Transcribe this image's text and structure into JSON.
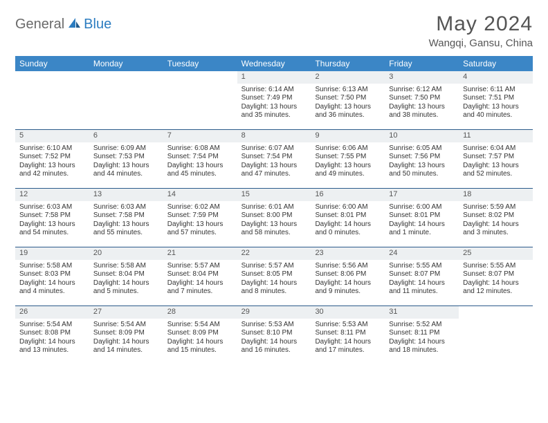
{
  "logo": {
    "text1": "General",
    "text2": "Blue"
  },
  "title": "May 2024",
  "location": "Wangqi, Gansu, China",
  "colors": {
    "header_bg": "#3b86c6",
    "header_text": "#ffffff",
    "row_divider": "#2a5a8a",
    "daynum_bg": "#edf0f2",
    "logo_gray": "#6a6a6a",
    "logo_blue": "#2b7cc0"
  },
  "weekdays": [
    "Sunday",
    "Monday",
    "Tuesday",
    "Wednesday",
    "Thursday",
    "Friday",
    "Saturday"
  ],
  "weeks": [
    [
      {
        "day": "",
        "sunrise": "",
        "sunset": "",
        "daylight": ""
      },
      {
        "day": "",
        "sunrise": "",
        "sunset": "",
        "daylight": ""
      },
      {
        "day": "",
        "sunrise": "",
        "sunset": "",
        "daylight": ""
      },
      {
        "day": "1",
        "sunrise": "Sunrise: 6:14 AM",
        "sunset": "Sunset: 7:49 PM",
        "daylight": "Daylight: 13 hours and 35 minutes."
      },
      {
        "day": "2",
        "sunrise": "Sunrise: 6:13 AM",
        "sunset": "Sunset: 7:50 PM",
        "daylight": "Daylight: 13 hours and 36 minutes."
      },
      {
        "day": "3",
        "sunrise": "Sunrise: 6:12 AM",
        "sunset": "Sunset: 7:50 PM",
        "daylight": "Daylight: 13 hours and 38 minutes."
      },
      {
        "day": "4",
        "sunrise": "Sunrise: 6:11 AM",
        "sunset": "Sunset: 7:51 PM",
        "daylight": "Daylight: 13 hours and 40 minutes."
      }
    ],
    [
      {
        "day": "5",
        "sunrise": "Sunrise: 6:10 AM",
        "sunset": "Sunset: 7:52 PM",
        "daylight": "Daylight: 13 hours and 42 minutes."
      },
      {
        "day": "6",
        "sunrise": "Sunrise: 6:09 AM",
        "sunset": "Sunset: 7:53 PM",
        "daylight": "Daylight: 13 hours and 44 minutes."
      },
      {
        "day": "7",
        "sunrise": "Sunrise: 6:08 AM",
        "sunset": "Sunset: 7:54 PM",
        "daylight": "Daylight: 13 hours and 45 minutes."
      },
      {
        "day": "8",
        "sunrise": "Sunrise: 6:07 AM",
        "sunset": "Sunset: 7:54 PM",
        "daylight": "Daylight: 13 hours and 47 minutes."
      },
      {
        "day": "9",
        "sunrise": "Sunrise: 6:06 AM",
        "sunset": "Sunset: 7:55 PM",
        "daylight": "Daylight: 13 hours and 49 minutes."
      },
      {
        "day": "10",
        "sunrise": "Sunrise: 6:05 AM",
        "sunset": "Sunset: 7:56 PM",
        "daylight": "Daylight: 13 hours and 50 minutes."
      },
      {
        "day": "11",
        "sunrise": "Sunrise: 6:04 AM",
        "sunset": "Sunset: 7:57 PM",
        "daylight": "Daylight: 13 hours and 52 minutes."
      }
    ],
    [
      {
        "day": "12",
        "sunrise": "Sunrise: 6:03 AM",
        "sunset": "Sunset: 7:58 PM",
        "daylight": "Daylight: 13 hours and 54 minutes."
      },
      {
        "day": "13",
        "sunrise": "Sunrise: 6:03 AM",
        "sunset": "Sunset: 7:58 PM",
        "daylight": "Daylight: 13 hours and 55 minutes."
      },
      {
        "day": "14",
        "sunrise": "Sunrise: 6:02 AM",
        "sunset": "Sunset: 7:59 PM",
        "daylight": "Daylight: 13 hours and 57 minutes."
      },
      {
        "day": "15",
        "sunrise": "Sunrise: 6:01 AM",
        "sunset": "Sunset: 8:00 PM",
        "daylight": "Daylight: 13 hours and 58 minutes."
      },
      {
        "day": "16",
        "sunrise": "Sunrise: 6:00 AM",
        "sunset": "Sunset: 8:01 PM",
        "daylight": "Daylight: 14 hours and 0 minutes."
      },
      {
        "day": "17",
        "sunrise": "Sunrise: 6:00 AM",
        "sunset": "Sunset: 8:01 PM",
        "daylight": "Daylight: 14 hours and 1 minute."
      },
      {
        "day": "18",
        "sunrise": "Sunrise: 5:59 AM",
        "sunset": "Sunset: 8:02 PM",
        "daylight": "Daylight: 14 hours and 3 minutes."
      }
    ],
    [
      {
        "day": "19",
        "sunrise": "Sunrise: 5:58 AM",
        "sunset": "Sunset: 8:03 PM",
        "daylight": "Daylight: 14 hours and 4 minutes."
      },
      {
        "day": "20",
        "sunrise": "Sunrise: 5:58 AM",
        "sunset": "Sunset: 8:04 PM",
        "daylight": "Daylight: 14 hours and 5 minutes."
      },
      {
        "day": "21",
        "sunrise": "Sunrise: 5:57 AM",
        "sunset": "Sunset: 8:04 PM",
        "daylight": "Daylight: 14 hours and 7 minutes."
      },
      {
        "day": "22",
        "sunrise": "Sunrise: 5:57 AM",
        "sunset": "Sunset: 8:05 PM",
        "daylight": "Daylight: 14 hours and 8 minutes."
      },
      {
        "day": "23",
        "sunrise": "Sunrise: 5:56 AM",
        "sunset": "Sunset: 8:06 PM",
        "daylight": "Daylight: 14 hours and 9 minutes."
      },
      {
        "day": "24",
        "sunrise": "Sunrise: 5:55 AM",
        "sunset": "Sunset: 8:07 PM",
        "daylight": "Daylight: 14 hours and 11 minutes."
      },
      {
        "day": "25",
        "sunrise": "Sunrise: 5:55 AM",
        "sunset": "Sunset: 8:07 PM",
        "daylight": "Daylight: 14 hours and 12 minutes."
      }
    ],
    [
      {
        "day": "26",
        "sunrise": "Sunrise: 5:54 AM",
        "sunset": "Sunset: 8:08 PM",
        "daylight": "Daylight: 14 hours and 13 minutes."
      },
      {
        "day": "27",
        "sunrise": "Sunrise: 5:54 AM",
        "sunset": "Sunset: 8:09 PM",
        "daylight": "Daylight: 14 hours and 14 minutes."
      },
      {
        "day": "28",
        "sunrise": "Sunrise: 5:54 AM",
        "sunset": "Sunset: 8:09 PM",
        "daylight": "Daylight: 14 hours and 15 minutes."
      },
      {
        "day": "29",
        "sunrise": "Sunrise: 5:53 AM",
        "sunset": "Sunset: 8:10 PM",
        "daylight": "Daylight: 14 hours and 16 minutes."
      },
      {
        "day": "30",
        "sunrise": "Sunrise: 5:53 AM",
        "sunset": "Sunset: 8:11 PM",
        "daylight": "Daylight: 14 hours and 17 minutes."
      },
      {
        "day": "31",
        "sunrise": "Sunrise: 5:52 AM",
        "sunset": "Sunset: 8:11 PM",
        "daylight": "Daylight: 14 hours and 18 minutes."
      },
      {
        "day": "",
        "sunrise": "",
        "sunset": "",
        "daylight": ""
      }
    ]
  ]
}
